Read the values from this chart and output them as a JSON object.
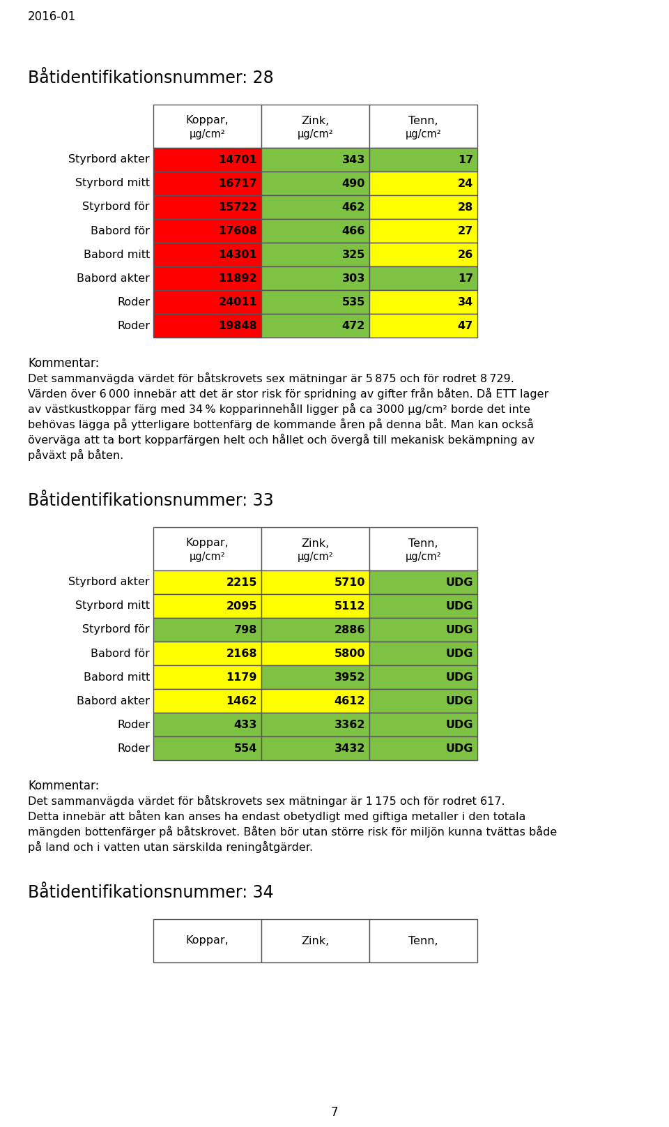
{
  "page_label": "2016-01",
  "boat1": {
    "title": "Båtidentifikationsnummer: 28",
    "headers_line1": [
      "Koppar,",
      "Zink,",
      "Tenn,"
    ],
    "headers_line2": [
      "μg/cm²",
      "μg/cm²",
      "μg/cm²"
    ],
    "rows": [
      {
        "label": "Styrbord akter",
        "values": [
          "14701",
          "343",
          "17"
        ],
        "colors": [
          "#ff0000",
          "#7dc242",
          "#7dc242"
        ]
      },
      {
        "label": "Styrbord mitt",
        "values": [
          "16717",
          "490",
          "24"
        ],
        "colors": [
          "#ff0000",
          "#7dc242",
          "#ffff00"
        ]
      },
      {
        "label": "Styrbord för",
        "values": [
          "15722",
          "462",
          "28"
        ],
        "colors": [
          "#ff0000",
          "#7dc242",
          "#ffff00"
        ]
      },
      {
        "label": "Babord för",
        "values": [
          "17608",
          "466",
          "27"
        ],
        "colors": [
          "#ff0000",
          "#7dc242",
          "#ffff00"
        ]
      },
      {
        "label": "Babord mitt",
        "values": [
          "14301",
          "325",
          "26"
        ],
        "colors": [
          "#ff0000",
          "#7dc242",
          "#ffff00"
        ]
      },
      {
        "label": "Babord akter",
        "values": [
          "11892",
          "303",
          "17"
        ],
        "colors": [
          "#ff0000",
          "#7dc242",
          "#7dc242"
        ]
      },
      {
        "label": "Roder",
        "values": [
          "24011",
          "535",
          "34"
        ],
        "colors": [
          "#ff0000",
          "#7dc242",
          "#ffff00"
        ]
      },
      {
        "label": "Roder",
        "values": [
          "19848",
          "472",
          "47"
        ],
        "colors": [
          "#ff0000",
          "#7dc242",
          "#ffff00"
        ]
      }
    ],
    "comment_title": "Kommentar:",
    "comment_lines": [
      "Det sammanvägda värdet för båtskrovets sex mätningar är 5 875 och för rodret 8 729.",
      "Värden över 6 000 innebär att det är stor risk för spridning av gifter från båten. Då ETT lager",
      "av västkustkoppar färg med 34 % kopparinnehåll ligger på ca 3000 μg/cm² borde det inte",
      "behövas lägga på ytterligare bottenfärg de kommande åren på denna båt. Man kan också",
      "överväga att ta bort kopparfärgen helt och hållet och övergå till mekanisk bekämpning av",
      "påväxt på båten."
    ]
  },
  "boat2": {
    "title": "Båtidentifikationsnummer: 33",
    "headers_line1": [
      "Koppar,",
      "Zink,",
      "Tenn,"
    ],
    "headers_line2": [
      "μg/cm²",
      "μg/cm²",
      "μg/cm²"
    ],
    "rows": [
      {
        "label": "Styrbord akter",
        "values": [
          "2215",
          "5710",
          "UDG"
        ],
        "colors": [
          "#ffff00",
          "#ffff00",
          "#7dc242"
        ]
      },
      {
        "label": "Styrbord mitt",
        "values": [
          "2095",
          "5112",
          "UDG"
        ],
        "colors": [
          "#ffff00",
          "#ffff00",
          "#7dc242"
        ]
      },
      {
        "label": "Styrbord för",
        "values": [
          "798",
          "2886",
          "UDG"
        ],
        "colors": [
          "#7dc242",
          "#7dc242",
          "#7dc242"
        ]
      },
      {
        "label": "Babord för",
        "values": [
          "2168",
          "5800",
          "UDG"
        ],
        "colors": [
          "#ffff00",
          "#ffff00",
          "#7dc242"
        ]
      },
      {
        "label": "Babord mitt",
        "values": [
          "1179",
          "3952",
          "UDG"
        ],
        "colors": [
          "#ffff00",
          "#7dc242",
          "#7dc242"
        ]
      },
      {
        "label": "Babord akter",
        "values": [
          "1462",
          "4612",
          "UDG"
        ],
        "colors": [
          "#ffff00",
          "#ffff00",
          "#7dc242"
        ]
      },
      {
        "label": "Roder",
        "values": [
          "433",
          "3362",
          "UDG"
        ],
        "colors": [
          "#7dc242",
          "#7dc242",
          "#7dc242"
        ]
      },
      {
        "label": "Roder",
        "values": [
          "554",
          "3432",
          "UDG"
        ],
        "colors": [
          "#7dc242",
          "#7dc242",
          "#7dc242"
        ]
      }
    ],
    "comment_title": "Kommentar:",
    "comment_lines": [
      "Det sammanvägda värdet för båtskrovets sex mätningar är 1 175 och för rodret 617.",
      "Detta innebär att båten kan anses ha endast obetydligt med giftiga metaller i den totala",
      "mängden bottenfärger på båtskrovet. Båten bör utan större risk för miljön kunna tvättas både",
      "på land och i vatten utan särskilda reningåtgärder."
    ]
  },
  "boat3": {
    "title": "Båtidentifikationsnummer: 34",
    "headers_line1": [
      "Koppar,",
      "Zink,",
      "Tenn,"
    ],
    "headers_line2": [
      "",
      "",
      ""
    ]
  },
  "page_number": "7"
}
